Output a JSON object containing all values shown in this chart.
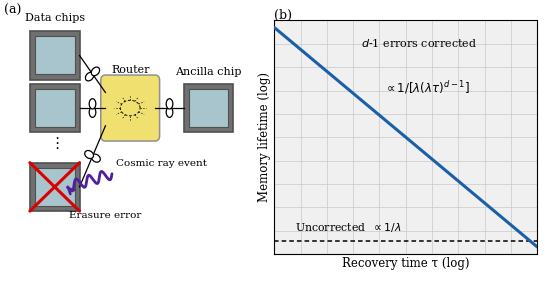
{
  "fig_width": 5.54,
  "fig_height": 2.92,
  "dpi": 100,
  "panel_a_label": "(a)",
  "panel_b_label": "(b)",
  "xlabel": "Recovery time τ (log)",
  "ylabel": "Memory lifetime (log)",
  "line_color": "#1a5fa8",
  "line_width": 2.2,
  "dotted_color": "#000000",
  "grid_color": "#c8c8c8",
  "background_color": "#f0f0f0",
  "chip_fill": "#a8c4cc",
  "chip_frame": "#707070",
  "chip_inner_frame": "#505050",
  "router_fill": "#f0e070",
  "router_edge": "#909090",
  "cosmic_color": "#5020a0",
  "cross_color": "#dd0000",
  "text_corrected": "d\\u22121 errors corrected",
  "text_formula": "$\\\\propto 1/[\\\\lambda(\\\\lambda\\\\tau)^{d-1}]$",
  "text_uncorrected": "Uncorrected  $\\\\propto 1/\\\\lambda$"
}
